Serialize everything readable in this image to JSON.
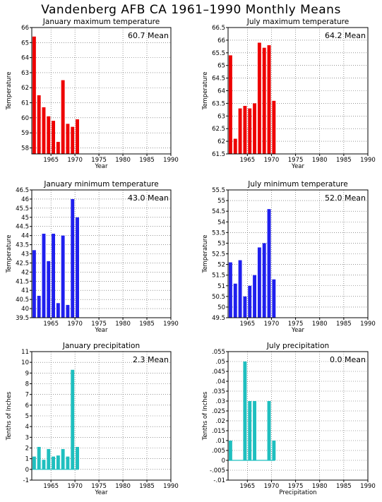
{
  "title": "Vandenberg AFB CA  1961–1990 Monthly Means",
  "colors": {
    "red": "#ee0000",
    "blue": "#1f1fee",
    "cyan": "#1fbfbf",
    "grid": "#555555"
  },
  "chart_data": [
    {
      "id": "jan-max",
      "type": "bar",
      "title": "January maximum temperature",
      "mean_label": "60.7 Mean",
      "xlabel": "Year",
      "ylabel": "Temperature",
      "xlim": [
        1961,
        1990
      ],
      "xticks": [
        1965,
        1970,
        1975,
        1980,
        1985,
        1990
      ],
      "ylim": [
        57.6,
        66
      ],
      "yticks": [
        58,
        59,
        60,
        61,
        62,
        63,
        64,
        65,
        66
      ],
      "color": "red",
      "x": [
        1961,
        1962,
        1963,
        1964,
        1965,
        1966,
        1967,
        1968,
        1969,
        1970
      ],
      "values": [
        65.4,
        61.5,
        60.7,
        60.1,
        59.8,
        58.4,
        62.5,
        59.6,
        59.4,
        59.9
      ]
    },
    {
      "id": "jul-max",
      "type": "bar",
      "title": "July maximum temperature",
      "mean_label": "64.2 Mean",
      "xlabel": "Year",
      "ylabel": "Temperature",
      "xlim": [
        1961,
        1990
      ],
      "xticks": [
        1965,
        1970,
        1975,
        1980,
        1985,
        1990
      ],
      "ylim": [
        61.5,
        66.5
      ],
      "yticks": [
        61.5,
        62,
        62.5,
        63,
        63.5,
        64,
        64.5,
        65,
        65.5,
        66,
        66.5
      ],
      "color": "red",
      "x": [
        1961,
        1962,
        1963,
        1964,
        1965,
        1966,
        1967,
        1968,
        1969,
        1970
      ],
      "values": [
        65.4,
        62.1,
        63.3,
        63.4,
        63.3,
        63.5,
        65.9,
        65.7,
        65.8,
        63.6
      ]
    },
    {
      "id": "jan-min",
      "type": "bar",
      "title": "January minimum temperature",
      "mean_label": "43.0 Mean",
      "xlabel": "Year",
      "ylabel": "Temperature",
      "xlim": [
        1961,
        1990
      ],
      "xticks": [
        1965,
        1970,
        1975,
        1980,
        1985,
        1990
      ],
      "ylim": [
        39.5,
        46.5
      ],
      "yticks": [
        39.5,
        40,
        40.5,
        41,
        41.5,
        42,
        42.5,
        43,
        43.5,
        44,
        44.5,
        45,
        45.5,
        46,
        46.5
      ],
      "color": "blue",
      "x": [
        1961,
        1962,
        1963,
        1964,
        1965,
        1966,
        1967,
        1968,
        1969,
        1970
      ],
      "values": [
        43.2,
        40.7,
        44.1,
        42.6,
        44.1,
        40.3,
        44.0,
        40.2,
        46.0,
        45.0
      ]
    },
    {
      "id": "jul-min",
      "type": "bar",
      "title": "July minimum temperature",
      "mean_label": "52.0 Mean",
      "xlabel": "Year",
      "ylabel": "Temperature",
      "xlim": [
        1961,
        1990
      ],
      "xticks": [
        1965,
        1970,
        1975,
        1980,
        1985,
        1990
      ],
      "ylim": [
        49.5,
        55.5
      ],
      "yticks": [
        49.5,
        50,
        50.5,
        51,
        51.5,
        52,
        52.5,
        53,
        53.5,
        54,
        54.5,
        55,
        55.5
      ],
      "color": "blue",
      "x": [
        1961,
        1962,
        1963,
        1964,
        1965,
        1966,
        1967,
        1968,
        1969,
        1970
      ],
      "values": [
        52.1,
        51.1,
        52.2,
        50.5,
        51.0,
        51.5,
        52.8,
        53.0,
        54.6,
        51.3
      ]
    },
    {
      "id": "jan-precip",
      "type": "bar",
      "title": "January precipitation",
      "mean_label": "2.3 Mean",
      "xlabel": "Year",
      "ylabel": "Tenths of Inches",
      "xlim": [
        1961,
        1990
      ],
      "xticks": [
        1965,
        1970,
        1975,
        1980,
        1985,
        1990
      ],
      "ylim": [
        -1,
        11
      ],
      "yticks": [
        -1,
        0,
        1,
        2,
        3,
        4,
        5,
        6,
        7,
        8,
        9,
        10,
        11
      ],
      "color": "cyan",
      "x": [
        1961,
        1962,
        1963,
        1964,
        1965,
        1966,
        1967,
        1968,
        1969,
        1970
      ],
      "values": [
        1.2,
        2.1,
        0.9,
        1.9,
        1.2,
        1.3,
        1.9,
        1.2,
        9.3,
        2.1
      ]
    },
    {
      "id": "jul-precip",
      "type": "bar",
      "title": "July precipitation",
      "mean_label": "0.0 Mean",
      "xlabel": "Precipitation",
      "ylabel": "Tenths of Inches",
      "xlim": [
        1961,
        1990
      ],
      "xticks": [
        1965,
        1970,
        1975,
        1980,
        1985,
        1990
      ],
      "ylim": [
        -0.01,
        0.055
      ],
      "yticks": [
        -0.01,
        -0.005,
        0,
        0.005,
        0.01,
        0.015,
        0.02,
        0.025,
        0.03,
        0.035,
        0.04,
        0.045,
        0.05,
        0.055
      ],
      "color": "cyan",
      "x": [
        1961,
        1962,
        1963,
        1964,
        1965,
        1966,
        1967,
        1968,
        1969,
        1970
      ],
      "values": [
        0.01,
        0,
        0,
        0.05,
        0.03,
        0.03,
        0,
        0,
        0.03,
        0.01
      ]
    }
  ]
}
